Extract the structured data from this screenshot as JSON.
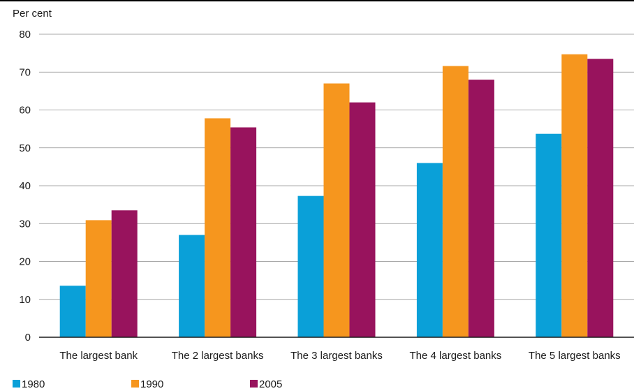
{
  "chart_data": {
    "type": "bar",
    "unit_label": "Per cent",
    "categories": [
      "The largest bank",
      "The 2 largest banks",
      "The 3 largest banks",
      "The 4 largest banks",
      "The 5 largest banks"
    ],
    "series": [
      {
        "name": "1980",
        "color": "#0aa0d8",
        "values": [
          13.6,
          27.0,
          37.3,
          46.0,
          53.7
        ]
      },
      {
        "name": "1990",
        "color": "#f6961e",
        "values": [
          30.9,
          57.8,
          67.0,
          71.6,
          74.7
        ]
      },
      {
        "name": "2005",
        "color": "#98135d",
        "values": [
          33.5,
          55.4,
          62.0,
          68.0,
          73.5
        ]
      }
    ],
    "ylim": [
      0,
      80
    ],
    "yticks": [
      "0",
      "10",
      "20",
      "30",
      "40",
      "50",
      "60",
      "70",
      "80"
    ],
    "grid": true,
    "legend_position": "bottom-left"
  }
}
